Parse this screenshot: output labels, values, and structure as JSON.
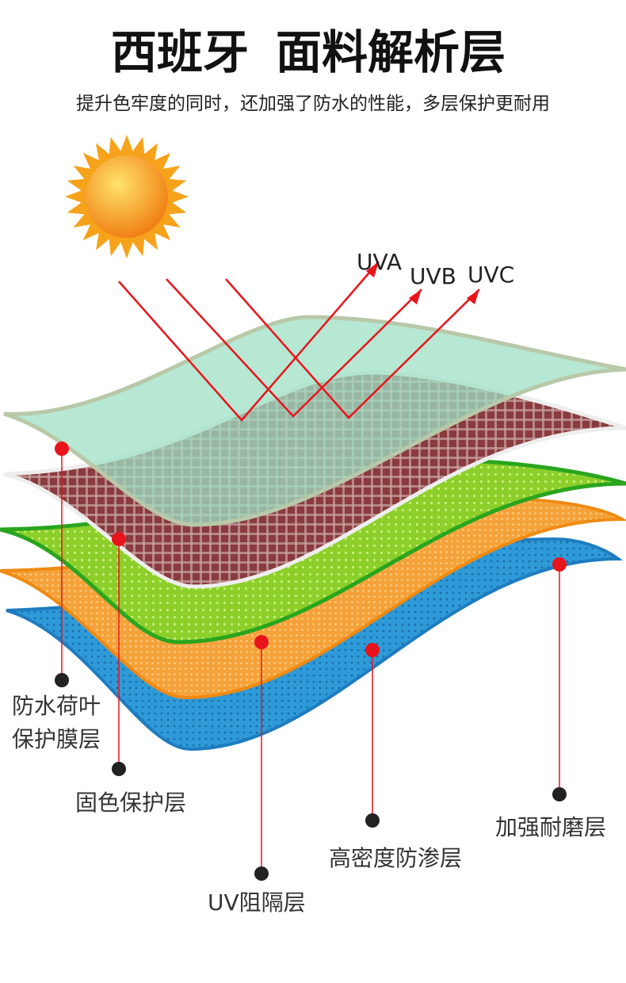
{
  "header": {
    "title": [
      "西班牙",
      "面料解析层"
    ],
    "subtitle": "提升色牢度的同时，还加强了防水的性能，多层保护更耐用"
  },
  "rays": [
    "UVA",
    "UVB",
    "UVC"
  ],
  "layers": [
    {
      "label": [
        "防水荷叶",
        "保护膜层"
      ]
    },
    {
      "label": [
        "固色保护层"
      ]
    },
    {
      "label": [
        "UV阻隔层"
      ]
    },
    {
      "label": [
        "高密度防渗层"
      ]
    },
    {
      "label": [
        "加强耐磨层"
      ]
    }
  ]
}
